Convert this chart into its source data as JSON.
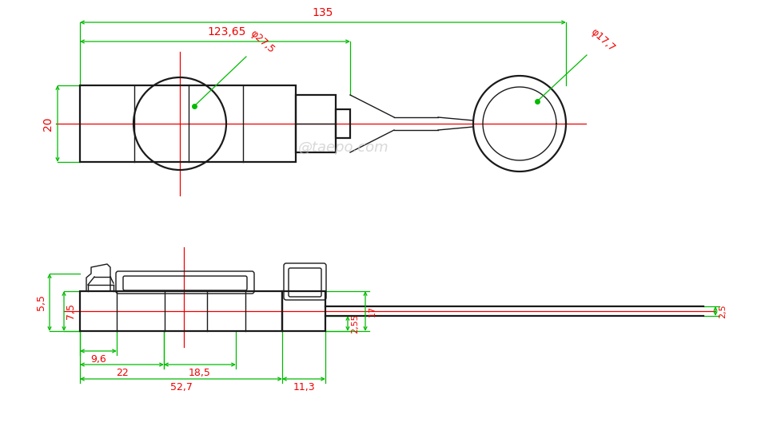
{
  "bg_color": "#ffffff",
  "line_color": "#1a1a1a",
  "dim_color": "#00bb00",
  "red_color": "#ee0000",
  "watermark": "@taepo.com",
  "dims": {
    "d135": "135",
    "d12365": "123,65",
    "d275": "φ27,5",
    "d177": "φ17,7",
    "d20": "20",
    "d96": "9,6",
    "d22": "22",
    "d185": "18,5",
    "d527": "52,7",
    "d113": "11,3",
    "d255": "2,55",
    "d17": "17",
    "d25": "2,5",
    "d55": "5,5",
    "d75": "7,5"
  }
}
